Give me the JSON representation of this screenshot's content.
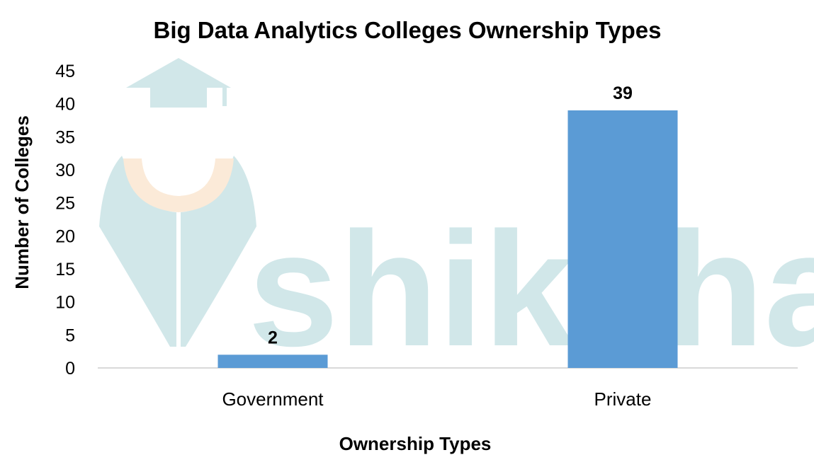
{
  "chart_data": {
    "type": "bar",
    "title": "Big Data Analytics Colleges Ownership Types",
    "xlabel": "Ownership Types",
    "ylabel": "Number of Colleges",
    "categories": [
      "Government",
      "Private"
    ],
    "values": [
      2,
      39
    ],
    "data_labels": [
      "2",
      "39"
    ],
    "ylim": [
      0,
      45
    ],
    "yticks": [
      "0",
      "5",
      "10",
      "15",
      "20",
      "25",
      "30",
      "35",
      "40",
      "45"
    ],
    "grid": false,
    "legend": "none",
    "bar_color": "#5B9BD5"
  },
  "watermark": {
    "text": "shiksha",
    "icon": "graduate-icon",
    "color": "#cfe6e8",
    "accent": "#fbe9d6"
  }
}
